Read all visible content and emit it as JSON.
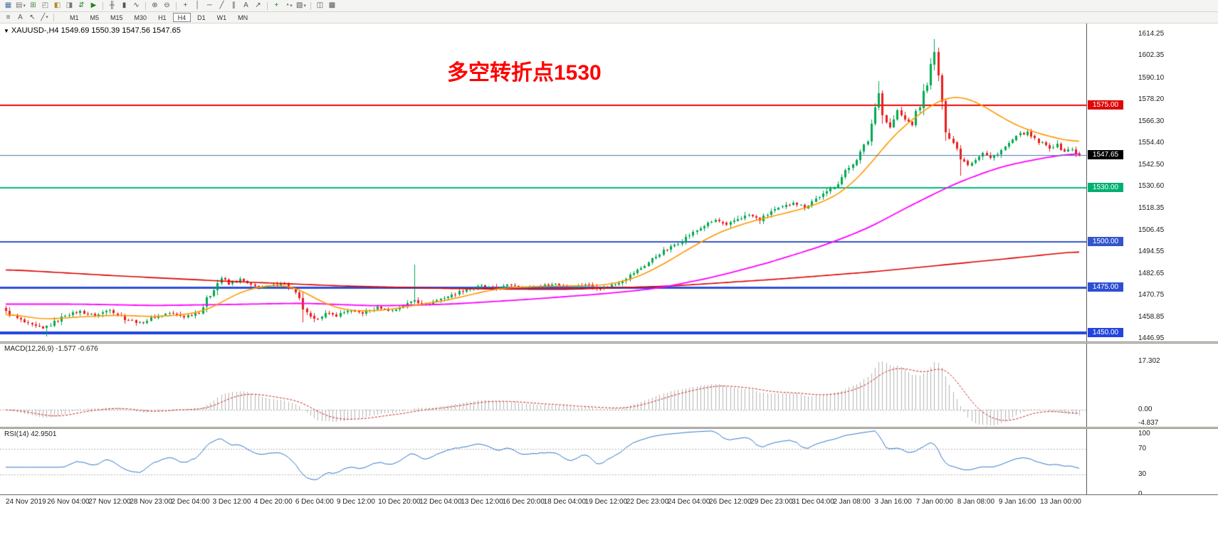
{
  "toolbars": {
    "main": [
      {
        "name": "new-chart",
        "glyph": "▦",
        "color": "#4a6fa5"
      },
      {
        "name": "profiles",
        "glyph": "▤",
        "caret": true,
        "color": "#777777"
      },
      {
        "name": "market-watch",
        "glyph": "⊞",
        "color": "#3f8a3f"
      },
      {
        "name": "data-window",
        "glyph": "◰",
        "color": "#777777"
      },
      {
        "name": "navigator",
        "glyph": "◧",
        "color": "#b08a2e"
      },
      {
        "name": "terminal",
        "glyph": "◨",
        "color": "#777777"
      },
      {
        "name": "new-order",
        "glyph": "⇵",
        "color": "#1a8a1a"
      },
      {
        "name": "autotrading",
        "glyph": "▶",
        "color": "#1a8a1a"
      },
      {
        "sep": true
      },
      {
        "name": "chart-bars",
        "glyph": "╫",
        "color": "#555555"
      },
      {
        "name": "chart-candles",
        "glyph": "▮",
        "color": "#555555"
      },
      {
        "name": "chart-line",
        "glyph": "∿",
        "color": "#555555"
      },
      {
        "sep": true
      },
      {
        "name": "zoom-in",
        "glyph": "⊕",
        "color": "#555555"
      },
      {
        "name": "zoom-out",
        "glyph": "⊖",
        "color": "#555555"
      },
      {
        "sep": true
      },
      {
        "name": "crosshair",
        "glyph": "+",
        "color": "#555555"
      },
      {
        "name": "vertical-line-tool",
        "glyph": "│",
        "color": "#555555"
      },
      {
        "name": "horizontal-line-tool",
        "glyph": "─",
        "color": "#555555"
      },
      {
        "name": "trendline-tool",
        "glyph": "╱",
        "color": "#555555"
      },
      {
        "name": "channel-tool",
        "glyph": "∥",
        "color": "#555555"
      },
      {
        "name": "text-tool",
        "glyph": "A",
        "color": "#555555"
      },
      {
        "name": "arrow-tool",
        "glyph": "↗",
        "color": "#555555"
      },
      {
        "sep": true
      },
      {
        "name": "indicators-add",
        "glyph": "+",
        "color": "#1a8a1a"
      },
      {
        "name": "period-dropdown",
        "glyph": "◔",
        "caret": true,
        "color": "#555555"
      },
      {
        "name": "template-dropdown",
        "glyph": "▧",
        "caret": true,
        "color": "#555555"
      },
      {
        "sep": true
      },
      {
        "name": "tile-windows",
        "glyph": "◫",
        "color": "#555555"
      },
      {
        "name": "cascade-windows",
        "glyph": "▩",
        "color": "#555555"
      }
    ],
    "tools": [
      {
        "name": "objects-list",
        "glyph": "≡"
      },
      {
        "name": "text-annotation",
        "glyph": "A"
      },
      {
        "name": "cursor-tool",
        "glyph": "↖"
      },
      {
        "name": "styles-dropdown",
        "glyph": "╱",
        "caret": true
      }
    ],
    "timeframes": {
      "items": [
        "M1",
        "M5",
        "M15",
        "M30",
        "H1",
        "H4",
        "D1",
        "W1",
        "MN"
      ],
      "active": "H4"
    }
  },
  "chart": {
    "symbol_ohlc": "XAUUSD-,H4 1549.69 1550.39 1547.56 1547.65",
    "annotation": {
      "text": "多空转折点1530",
      "color": "#ff0000"
    }
  },
  "time_axis": [
    "24 Nov 2019",
    "26 Nov 04:00",
    "27 Nov 12:00",
    "28 Nov 23:00",
    "2 Dec 04:00",
    "3 Dec 12:00",
    "4 Dec 20:00",
    "6 Dec 04:00",
    "9 Dec 12:00",
    "10 Dec 20:00",
    "12 Dec 04:00",
    "13 Dec 12:00",
    "16 Dec 20:00",
    "18 Dec 04:00",
    "19 Dec 12:00",
    "22 Dec 23:00",
    "24 Dec 04:00",
    "26 Dec 12:00",
    "29 Dec 23:00",
    "31 Dec 04:00",
    "2 Jan 08:00",
    "3 Jan 16:00",
    "7 Jan 00:00",
    "8 Jan 08:00",
    "9 Jan 16:00",
    "13 Jan 00:00"
  ],
  "chart_data": {
    "type": "candlestick",
    "symbol": "XAUUSD-",
    "timeframe": "H4",
    "open": 1549.69,
    "high": 1550.39,
    "low": 1547.56,
    "close": 1547.65,
    "price_axis": {
      "min": 1445.5,
      "max": 1620.0,
      "ticks": [
        "1614.25",
        "1602.35",
        "1590.10",
        "1578.20",
        "1566.30",
        "1554.40",
        "1542.50",
        "1530.60",
        "1518.35",
        "1506.45",
        "1494.55",
        "1482.65",
        "1470.75",
        "1458.85",
        "1446.95"
      ]
    },
    "bid": {
      "price": 1547.65,
      "label": "1547.65",
      "line_color": "#4a7ba6",
      "label_bg": "#000000"
    },
    "levels": [
      {
        "price": 1575.0,
        "label": "1575.00",
        "color": "#ee0808",
        "width": 2,
        "label_bg": "#e00808"
      },
      {
        "price": 1530.0,
        "label": "1530.00",
        "color": "#00bb7a",
        "width": 2,
        "label_bg": "#00b070"
      },
      {
        "price": 1500.0,
        "label": "1500.00",
        "color": "#3355cc",
        "width": 2,
        "label_bg": "#3355cc"
      },
      {
        "price": 1475.0,
        "label": "1475.00",
        "color": "#2e4fd4",
        "width": 3,
        "label_bg": "#2e4fd4"
      },
      {
        "price": 1450.0,
        "label": "1450.00",
        "color": "#2244dd",
        "width": 4,
        "label_bg": "#2244dd"
      }
    ],
    "candles": {
      "count": 290,
      "up_color": "#00a94f",
      "down_color": "#ec1c1c",
      "last_close": 1547.65,
      "close_anchors": [
        [
          0,
          1462
        ],
        [
          3,
          1458
        ],
        [
          6,
          1455
        ],
        [
          10,
          1452.5
        ],
        [
          13,
          1456
        ],
        [
          16,
          1460
        ],
        [
          20,
          1462
        ],
        [
          24,
          1459.5
        ],
        [
          28,
          1463
        ],
        [
          32,
          1458
        ],
        [
          36,
          1455.5
        ],
        [
          40,
          1459
        ],
        [
          44,
          1461
        ],
        [
          48,
          1459
        ],
        [
          52,
          1462
        ],
        [
          54,
          1468
        ],
        [
          56,
          1475
        ],
        [
          58,
          1480.5
        ],
        [
          60,
          1477
        ],
        [
          63,
          1479.5
        ],
        [
          66,
          1476
        ],
        [
          70,
          1475
        ],
        [
          74,
          1477.5
        ],
        [
          77,
          1474
        ],
        [
          79,
          1468
        ],
        [
          81,
          1460
        ],
        [
          83,
          1457.5
        ],
        [
          86,
          1461
        ],
        [
          89,
          1459.5
        ],
        [
          92,
          1462.5
        ],
        [
          96,
          1461
        ],
        [
          100,
          1464
        ],
        [
          104,
          1462.5
        ],
        [
          108,
          1466
        ],
        [
          110,
          1468.5
        ],
        [
          113,
          1465.5
        ],
        [
          116,
          1468
        ],
        [
          120,
          1471
        ],
        [
          124,
          1474
        ],
        [
          128,
          1476
        ],
        [
          132,
          1474.5
        ],
        [
          136,
          1476.5
        ],
        [
          140,
          1475
        ],
        [
          144,
          1476
        ],
        [
          148,
          1477
        ],
        [
          152,
          1475
        ],
        [
          156,
          1477
        ],
        [
          160,
          1474.5
        ],
        [
          164,
          1477
        ],
        [
          167,
          1480.5
        ],
        [
          170,
          1484.5
        ],
        [
          173,
          1489
        ],
        [
          176,
          1494
        ],
        [
          179,
          1497
        ],
        [
          182,
          1501.5
        ],
        [
          185,
          1505
        ],
        [
          188,
          1509
        ],
        [
          191,
          1512
        ],
        [
          194,
          1509
        ],
        [
          197,
          1513
        ],
        [
          200,
          1515
        ],
        [
          203,
          1512
        ],
        [
          206,
          1517
        ],
        [
          209,
          1519
        ],
        [
          212,
          1522
        ],
        [
          215,
          1519
        ],
        [
          218,
          1524
        ],
        [
          221,
          1527
        ],
        [
          224,
          1533
        ],
        [
          227,
          1541
        ],
        [
          230,
          1549
        ],
        [
          232,
          1556
        ],
        [
          234,
          1574
        ],
        [
          235,
          1583
        ],
        [
          236,
          1570
        ],
        [
          238,
          1563
        ],
        [
          240,
          1572
        ],
        [
          242,
          1567
        ],
        [
          244,
          1565
        ],
        [
          246,
          1575
        ],
        [
          248,
          1588
        ],
        [
          250,
          1604
        ],
        [
          251,
          1592
        ],
        [
          252,
          1575
        ],
        [
          253,
          1562
        ],
        [
          255,
          1555
        ],
        [
          257,
          1547
        ],
        [
          259,
          1542.5
        ],
        [
          261,
          1546
        ],
        [
          263,
          1549
        ],
        [
          265,
          1546
        ],
        [
          267,
          1549
        ],
        [
          269,
          1552
        ],
        [
          271,
          1556
        ],
        [
          273,
          1559
        ],
        [
          275,
          1560
        ],
        [
          277,
          1556
        ],
        [
          279,
          1554
        ],
        [
          281,
          1552
        ],
        [
          283,
          1553.5
        ],
        [
          285,
          1550
        ],
        [
          287,
          1551
        ],
        [
          289,
          1547.65
        ]
      ],
      "wick_high_overrides": {
        "110": 1487.5,
        "235": 1588.3,
        "249": 1599.0,
        "250": 1611.5
      },
      "wick_low_overrides": {
        "11": 1448.5,
        "80": 1456.0,
        "257": 1536.5
      }
    },
    "moving_averages": [
      {
        "name": "fast-ma",
        "color": "#ff9900",
        "width": 1.6,
        "anchors": [
          [
            0,
            1461
          ],
          [
            10,
            1457.5
          ],
          [
            20,
            1459
          ],
          [
            30,
            1460
          ],
          [
            40,
            1459
          ],
          [
            50,
            1460.5
          ],
          [
            56,
            1464
          ],
          [
            62,
            1472
          ],
          [
            70,
            1476.5
          ],
          [
            78,
            1476
          ],
          [
            83,
            1469
          ],
          [
            90,
            1463
          ],
          [
            96,
            1462
          ],
          [
            104,
            1463
          ],
          [
            110,
            1465.5
          ],
          [
            116,
            1467
          ],
          [
            124,
            1470.5
          ],
          [
            132,
            1474.5
          ],
          [
            140,
            1475.5
          ],
          [
            150,
            1476
          ],
          [
            160,
            1476
          ],
          [
            168,
            1479
          ],
          [
            176,
            1486.5
          ],
          [
            184,
            1496.5
          ],
          [
            192,
            1505.5
          ],
          [
            200,
            1511
          ],
          [
            208,
            1515
          ],
          [
            216,
            1519
          ],
          [
            224,
            1525.5
          ],
          [
            230,
            1536
          ],
          [
            236,
            1551
          ],
          [
            240,
            1561
          ],
          [
            244,
            1567
          ],
          [
            248,
            1573.5
          ],
          [
            252,
            1579
          ],
          [
            256,
            1580.5
          ],
          [
            260,
            1578.5
          ],
          [
            264,
            1574
          ],
          [
            268,
            1568.5
          ],
          [
            272,
            1564
          ],
          [
            276,
            1561
          ],
          [
            280,
            1558.5
          ],
          [
            284,
            1556.5
          ],
          [
            289,
            1554.5
          ]
        ]
      },
      {
        "name": "medium-ma",
        "color": "#ff00ff",
        "width": 1.8,
        "anchors": [
          [
            0,
            1466
          ],
          [
            20,
            1466
          ],
          [
            40,
            1465.2
          ],
          [
            60,
            1465.8
          ],
          [
            80,
            1466.5
          ],
          [
            100,
            1465
          ],
          [
            120,
            1466
          ],
          [
            140,
            1468.5
          ],
          [
            160,
            1471.5
          ],
          [
            175,
            1474.5
          ],
          [
            190,
            1480.5
          ],
          [
            205,
            1488.5
          ],
          [
            220,
            1498
          ],
          [
            232,
            1507.5
          ],
          [
            244,
            1520.5
          ],
          [
            256,
            1532.5
          ],
          [
            268,
            1541.5
          ],
          [
            280,
            1546.5
          ],
          [
            289,
            1549
          ]
        ]
      },
      {
        "name": "slow-ma",
        "color": "#dd0000",
        "width": 1.6,
        "anchors": [
          [
            0,
            1485
          ],
          [
            30,
            1481.5
          ],
          [
            60,
            1478.5
          ],
          [
            90,
            1476
          ],
          [
            120,
            1474.5
          ],
          [
            150,
            1474
          ],
          [
            180,
            1476
          ],
          [
            210,
            1480
          ],
          [
            235,
            1484
          ],
          [
            255,
            1488
          ],
          [
            270,
            1491
          ],
          [
            289,
            1495
          ]
        ]
      }
    ],
    "macd": {
      "label": "MACD(12,26,9) -1.577 -0.676",
      "fast": 12,
      "slow": 26,
      "signal_period": 9,
      "value": -1.577,
      "signal_value": -0.676,
      "axis": [
        "17.302",
        "0.00",
        "-4.837"
      ],
      "histogram_color": "#b4b4b4",
      "signal_color": "#d02020"
    },
    "rsi": {
      "label": "RSI(14) 42.9501",
      "period": 14,
      "value": 42.9501,
      "axis": [
        "100",
        "70",
        "30",
        "0"
      ],
      "axis_values": [
        100,
        70,
        30,
        0
      ],
      "levels": [
        70,
        30
      ],
      "color": "#3377cc"
    }
  }
}
